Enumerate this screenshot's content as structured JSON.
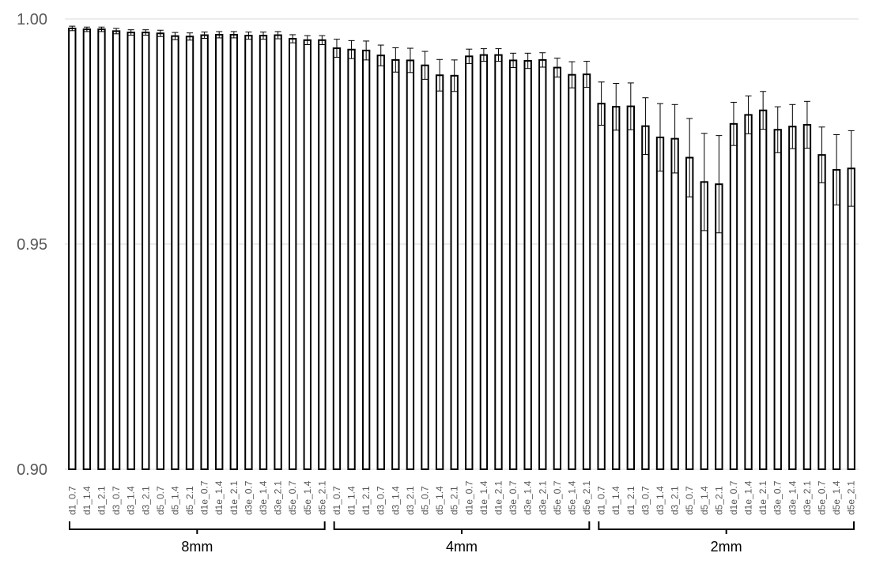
{
  "chart_data": {
    "type": "bar",
    "title": "",
    "xlabel": "",
    "ylabel": "",
    "ylim": [
      0.9,
      1.0
    ],
    "yticks": [
      "0.90",
      "0.95",
      "1.00"
    ],
    "grid": "horizontal",
    "legend": "none",
    "colors": {
      "bar_fill": "#ffffff",
      "bar_stroke": "#000000",
      "grid": "#d9d9d9",
      "text": "#595959"
    },
    "groups": [
      {
        "label": "8mm",
        "categories": [
          "d1_0.7",
          "d1_1.4",
          "d1_2.1",
          "d3_0.7",
          "d3_1.4",
          "d3_2.1",
          "d5_0.7",
          "d5_1.4",
          "d5_2.1",
          "d1e_0.7",
          "d1e_1.4",
          "d1e_2.1",
          "d3e_0.7",
          "d3e_1.4",
          "d3e_2.1",
          "d5e_0.7",
          "d5e_1.4",
          "d5e_2.1"
        ]
      },
      {
        "label": "4mm",
        "categories": [
          "d1_0.7",
          "d1_1.4",
          "d1_2.1",
          "d3_0.7",
          "d3_1.4",
          "d3_2.1",
          "d5_0.7",
          "d5_1.4",
          "d5_2.1",
          "d1e_0.7",
          "d1e_1.4",
          "d1e_2.1",
          "d3e_0.7",
          "d3e_1.4",
          "d3e_2.1",
          "d5e_0.7",
          "d5e_1.4",
          "d5e_2.1"
        ]
      },
      {
        "label": "2mm",
        "categories": [
          "d1_0.7",
          "d1_1.4",
          "d1_2.1",
          "d3_0.7",
          "d3_1.4",
          "d3_2.1",
          "d5_0.7",
          "d5_1.4",
          "d5_2.1",
          "d1e_0.7",
          "d1e_1.4",
          "d1e_2.1",
          "d3e_0.7",
          "d3e_1.4",
          "d3e_2.1",
          "d5e_0.7",
          "d5e_1.4",
          "d5e_2.1"
        ]
      }
    ],
    "values": [
      0.9979,
      0.9977,
      0.9977,
      0.9973,
      0.997,
      0.997,
      0.9968,
      0.9962,
      0.9961,
      0.9964,
      0.9965,
      0.9965,
      0.9963,
      0.9963,
      0.9964,
      0.9956,
      0.9953,
      0.9953,
      0.9935,
      0.9932,
      0.993,
      0.9919,
      0.9909,
      0.9908,
      0.9897,
      0.9875,
      0.9874,
      0.9917,
      0.992,
      0.992,
      0.9908,
      0.9907,
      0.9909,
      0.9892,
      0.9876,
      0.9877,
      0.9812,
      0.9805,
      0.9806,
      0.9762,
      0.9737,
      0.9734,
      0.9692,
      0.9638,
      0.9633,
      0.9767,
      0.9787,
      0.9797,
      0.9754,
      0.9761,
      0.9765,
      0.9698,
      0.9665,
      0.9668
    ],
    "errors": [
      0.0005,
      0.0005,
      0.0005,
      0.0006,
      0.0006,
      0.0006,
      0.0007,
      0.0008,
      0.0008,
      0.0007,
      0.0007,
      0.0007,
      0.0008,
      0.0008,
      0.0008,
      0.0009,
      0.001,
      0.001,
      0.002,
      0.002,
      0.0021,
      0.0023,
      0.0027,
      0.0027,
      0.0031,
      0.0035,
      0.0035,
      0.0016,
      0.0014,
      0.0014,
      0.0016,
      0.0017,
      0.0016,
      0.0021,
      0.0029,
      0.0029,
      0.0048,
      0.0052,
      0.0052,
      0.0063,
      0.0075,
      0.0076,
      0.0087,
      0.0108,
      0.0108,
      0.0048,
      0.0042,
      0.0042,
      0.0051,
      0.0049,
      0.0052,
      0.0062,
      0.0078,
      0.0084
    ]
  }
}
